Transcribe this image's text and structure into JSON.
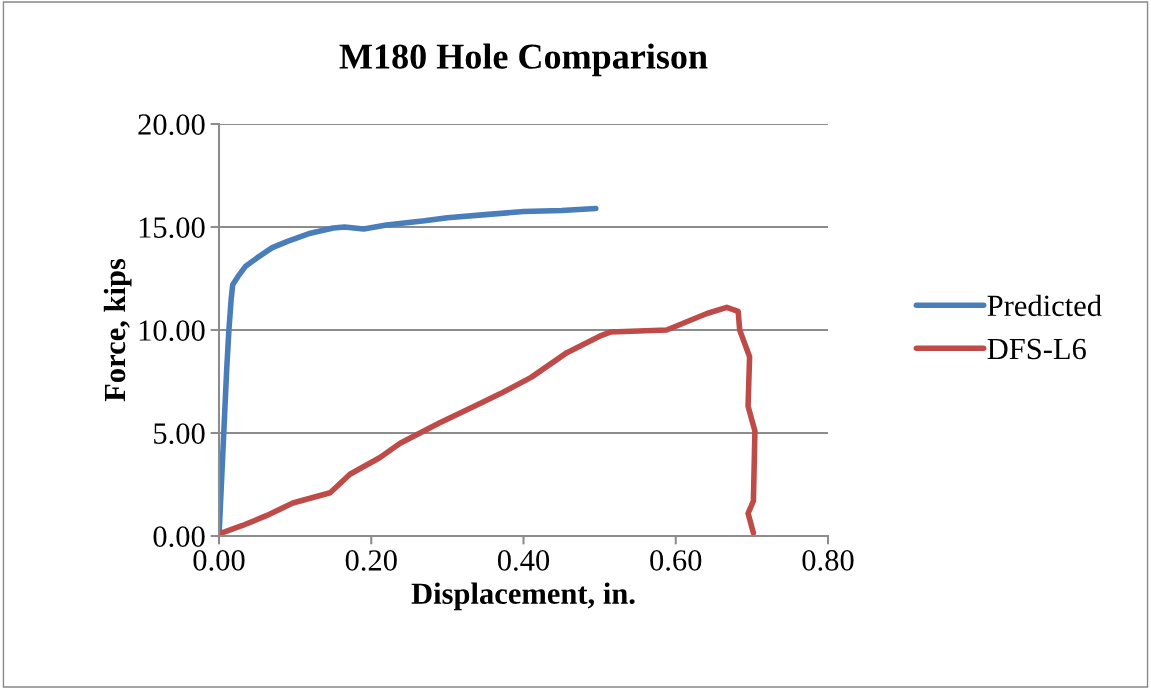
{
  "chart_data": {
    "type": "line",
    "title": "M180 Hole Comparison",
    "xlabel": "Displacement, in.",
    "ylabel": "Force, kips",
    "xlim": [
      0,
      0.8
    ],
    "xticks": [
      {
        "value": 0,
        "label": "0.00"
      },
      {
        "value": 0.2,
        "label": "0.20"
      },
      {
        "value": 0.4,
        "label": "0.40"
      },
      {
        "value": 0.6,
        "label": "0.60"
      },
      {
        "value": 0.8,
        "label": "0.80"
      }
    ],
    "ylim": [
      0,
      20
    ],
    "yticks": [
      {
        "value": 0,
        "label": "0.00"
      },
      {
        "value": 5,
        "label": "5.00"
      },
      {
        "value": 10,
        "label": "10.00"
      },
      {
        "value": 15,
        "label": "15.00"
      },
      {
        "value": 20,
        "label": "20.00"
      }
    ],
    "grid": "y",
    "legend": "right",
    "marker": "none",
    "line_style": "solid",
    "series": [
      {
        "name": "Predicted",
        "color": "#4a7ebb",
        "x": [
          0,
          0.005,
          0.01,
          0.013,
          0.016,
          0.018,
          0.025,
          0.035,
          0.05,
          0.07,
          0.09,
          0.12,
          0.15,
          0.165,
          0.19,
          0.22,
          0.27,
          0.3,
          0.35,
          0.4,
          0.45,
          0.495
        ],
        "values": [
          0,
          4,
          8,
          10,
          11.5,
          12.2,
          12.6,
          13.1,
          13.5,
          14.0,
          14.3,
          14.7,
          14.95,
          15.0,
          14.9,
          15.1,
          15.3,
          15.45,
          15.6,
          15.75,
          15.8,
          15.9
        ]
      },
      {
        "name": "DFS-L6",
        "color": "#be4b48",
        "x": [
          0,
          0.03,
          0.063,
          0.097,
          0.146,
          0.172,
          0.211,
          0.238,
          0.29,
          0.347,
          0.369,
          0.41,
          0.457,
          0.5,
          0.514,
          0.588,
          0.641,
          0.667,
          0.682,
          0.684,
          0.697,
          0.695,
          0.704,
          0.702,
          0.695,
          0.702
        ],
        "values": [
          0.1,
          0.5,
          1.0,
          1.6,
          2.1,
          3.0,
          3.8,
          4.5,
          5.5,
          6.5,
          6.9,
          7.7,
          8.9,
          9.7,
          9.9,
          10.0,
          10.8,
          11.1,
          10.9,
          10.0,
          8.7,
          6.3,
          5.1,
          1.7,
          1.1,
          0.15
        ]
      }
    ]
  }
}
